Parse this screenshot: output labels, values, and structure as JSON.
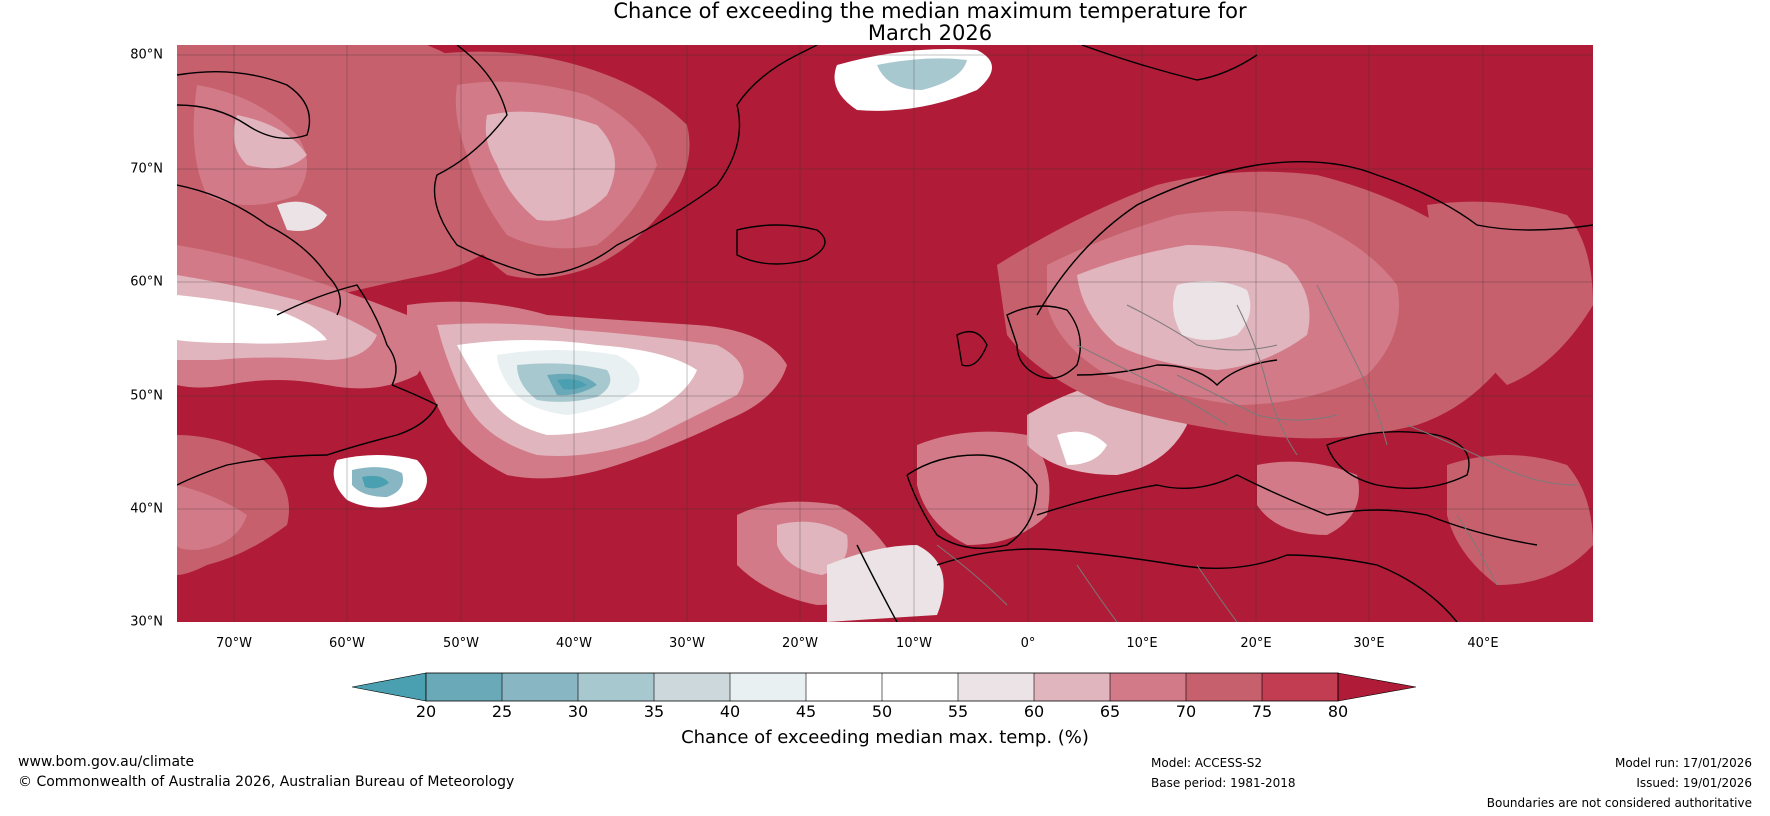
{
  "title": {
    "line1": "Chance of exceeding the median maximum temperature for",
    "line2": "March 2026"
  },
  "map": {
    "region": "North Atlantic and Europe",
    "longitude_range": [
      "75°W",
      "50°E"
    ],
    "latitude_range": [
      "30°N",
      "81°N"
    ],
    "lat_labels": [
      "80°N",
      "70°N",
      "60°N",
      "50°N",
      "40°N",
      "30°N"
    ],
    "lon_labels": [
      "70°W",
      "60°W",
      "50°W",
      "40°W",
      "30°W",
      "20°W",
      "10°W",
      "0°",
      "10°E",
      "20°E",
      "30°E",
      "40°E"
    ],
    "dominant_category": "above 80% (large areas of Atlantic, Mediterranean and Europe)",
    "notable_low_region": "20–35% over the central North Atlantic near 40–50°N, 30–45°W"
  },
  "colorbar": {
    "ticks": [
      "20",
      "25",
      "30",
      "35",
      "40",
      "45",
      "50",
      "55",
      "60",
      "65",
      "70",
      "75",
      "80"
    ],
    "colors": [
      "#4aa0b0",
      "#6aaab8",
      "#88b7c3",
      "#a8c8cf",
      "#ccd8dc",
      "#e9f0f2",
      "#ffffff",
      "#ffffff",
      "#ebe3e5",
      "#e0b5bd",
      "#d27a88",
      "#c7606d",
      "#c23c52",
      "#b01c37"
    ],
    "label": "Chance of exceeding median max. temp. (%)"
  },
  "footer": {
    "url": "www.bom.gov.au/climate",
    "copyright": "© Commonwealth of Australia 2026, Australian Bureau of Meteorology",
    "model": "Model: ACCESS-S2",
    "base_period": "Base period: 1981-2018",
    "model_run": "Model run: 17/01/2026",
    "issued": "Issued: 19/01/2026",
    "disclaimer": "Boundaries are not considered authoritative"
  }
}
